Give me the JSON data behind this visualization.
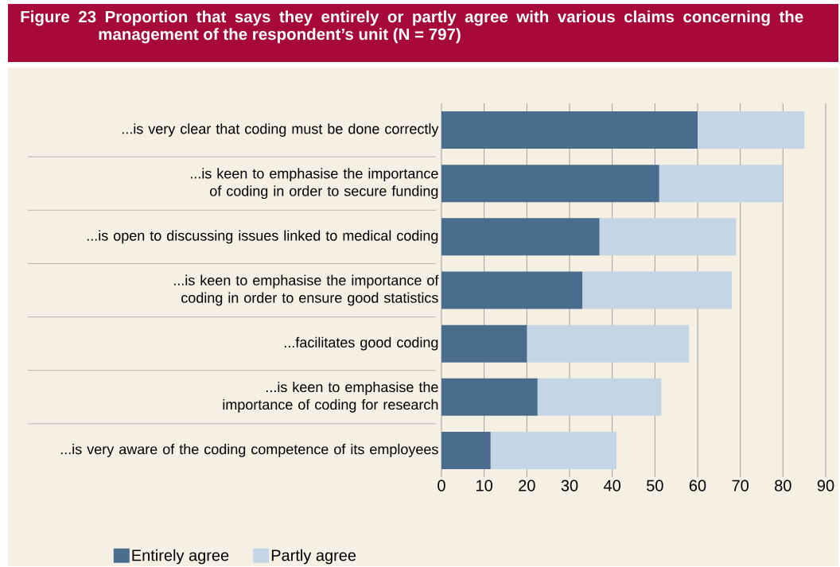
{
  "chart_data": {
    "type": "bar",
    "orientation": "horizontal",
    "stacked": true,
    "title": "Figure 23 Proportion that says they entirely or partly agree with various claims concerning the management of the respondent’s unit (N = 797)",
    "categories": [
      "...is very clear that coding must be done correctly",
      "...is keen to emphasise the importance of coding in order to secure funding",
      "...is open to discussing issues linked to medical coding",
      "...is keen to emphasise the importance of coding in order to ensure good statistics",
      "...facilitates good coding",
      "...is keen to emphasise the importance of coding for research",
      "...is very aware of the coding competence of its employees"
    ],
    "series": [
      {
        "name": "Entirely agree",
        "color": "#4a6d8e",
        "values": [
          60,
          51,
          37,
          33,
          20,
          22.5,
          11.5
        ]
      },
      {
        "name": "Partly agree",
        "color": "#c4d5e5",
        "values": [
          25,
          29,
          32,
          35,
          38,
          29,
          29.5
        ]
      }
    ],
    "xlim": [
      0,
      90
    ],
    "xticks": [
      0,
      10,
      20,
      30,
      40,
      50,
      60,
      70,
      80,
      90
    ],
    "grid": "x",
    "legend": "bottom left"
  }
}
